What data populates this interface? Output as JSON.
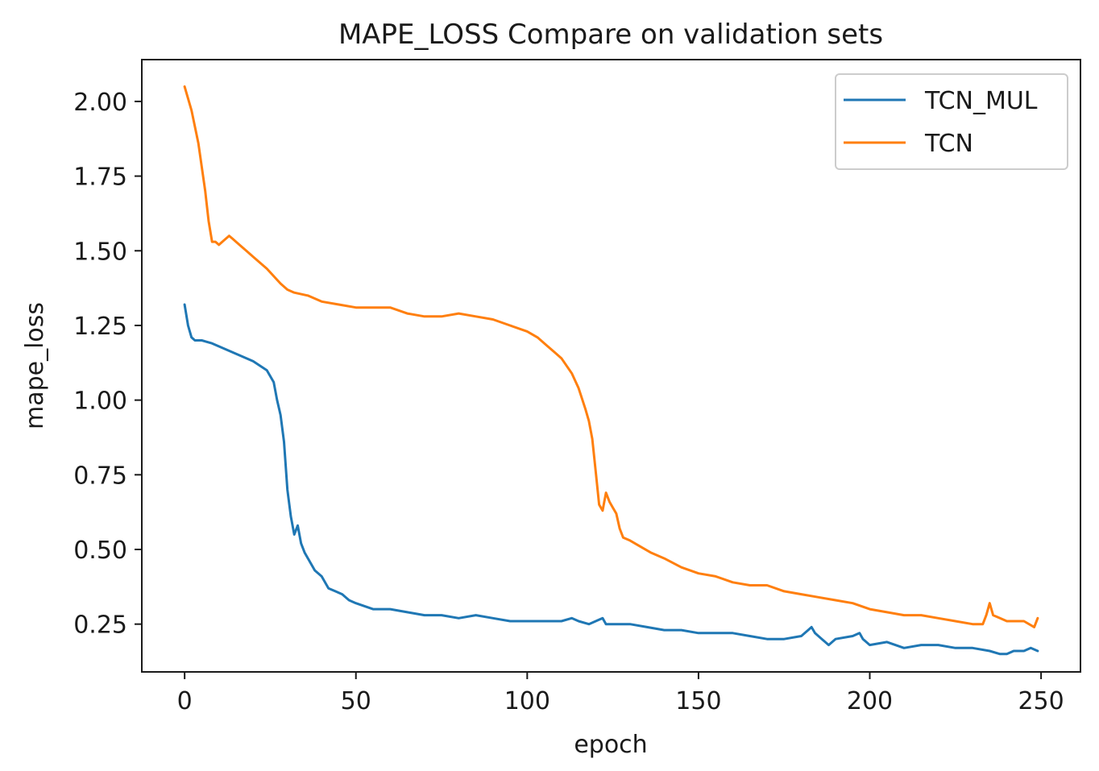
{
  "chart_data": {
    "type": "line",
    "title": "MAPE_LOSS Compare on validation sets",
    "xlabel": "epoch",
    "ylabel": "mape_loss",
    "xlim": [
      -12.5,
      261.5
    ],
    "ylim": [
      0.09,
      2.14
    ],
    "xticks": [
      0,
      50,
      100,
      150,
      200,
      250
    ],
    "xtick_labels": [
      "0",
      "50",
      "100",
      "150",
      "200",
      "250"
    ],
    "yticks": [
      0.25,
      0.5,
      0.75,
      1.0,
      1.25,
      1.5,
      1.75,
      2.0
    ],
    "ytick_labels": [
      "0.25",
      "0.50",
      "0.75",
      "1.00",
      "1.25",
      "1.50",
      "1.75",
      "2.00"
    ],
    "grid": false,
    "legend": "top-right",
    "series": [
      {
        "name": "TCN_MUL",
        "color": "#1f77b4",
        "x": [
          0,
          1,
          2,
          3,
          4,
          5,
          8,
          12,
          16,
          20,
          24,
          26,
          27,
          28,
          29,
          30,
          31,
          32,
          33,
          34,
          35,
          36,
          38,
          40,
          42,
          44,
          46,
          48,
          50,
          55,
          60,
          65,
          70,
          75,
          80,
          85,
          90,
          95,
          100,
          105,
          110,
          113,
          115,
          118,
          120,
          122,
          123,
          125,
          130,
          135,
          140,
          145,
          150,
          155,
          160,
          165,
          170,
          175,
          180,
          182,
          183,
          184,
          186,
          188,
          190,
          195,
          197,
          198,
          200,
          205,
          210,
          215,
          220,
          225,
          230,
          235,
          238,
          240,
          242,
          245,
          247,
          249
        ],
        "values": [
          1.32,
          1.25,
          1.21,
          1.2,
          1.2,
          1.2,
          1.19,
          1.17,
          1.15,
          1.13,
          1.1,
          1.06,
          1.0,
          0.95,
          0.86,
          0.7,
          0.61,
          0.55,
          0.58,
          0.52,
          0.49,
          0.47,
          0.43,
          0.41,
          0.37,
          0.36,
          0.35,
          0.33,
          0.32,
          0.3,
          0.3,
          0.29,
          0.28,
          0.28,
          0.27,
          0.28,
          0.27,
          0.26,
          0.26,
          0.26,
          0.26,
          0.27,
          0.26,
          0.25,
          0.26,
          0.27,
          0.25,
          0.25,
          0.25,
          0.24,
          0.23,
          0.23,
          0.22,
          0.22,
          0.22,
          0.21,
          0.2,
          0.2,
          0.21,
          0.23,
          0.24,
          0.22,
          0.2,
          0.18,
          0.2,
          0.21,
          0.22,
          0.2,
          0.18,
          0.19,
          0.17,
          0.18,
          0.18,
          0.17,
          0.17,
          0.16,
          0.15,
          0.15,
          0.16,
          0.16,
          0.17,
          0.16
        ]
      },
      {
        "name": "TCN",
        "color": "#ff7f0e",
        "x": [
          0,
          2,
          4,
          6,
          7,
          8,
          9,
          10,
          11,
          12,
          13,
          14,
          16,
          18,
          20,
          24,
          28,
          30,
          32,
          36,
          40,
          45,
          50,
          55,
          60,
          65,
          70,
          75,
          80,
          85,
          90,
          95,
          100,
          103,
          105,
          108,
          110,
          113,
          115,
          117,
          118,
          119,
          120,
          121,
          122,
          123,
          124,
          125,
          126,
          127,
          128,
          130,
          133,
          136,
          140,
          145,
          150,
          155,
          160,
          165,
          170,
          175,
          180,
          185,
          190,
          195,
          200,
          205,
          210,
          215,
          220,
          225,
          230,
          233,
          234,
          235,
          236,
          238,
          240,
          245,
          248,
          249
        ],
        "values": [
          2.05,
          1.97,
          1.86,
          1.7,
          1.6,
          1.53,
          1.53,
          1.52,
          1.53,
          1.54,
          1.55,
          1.54,
          1.52,
          1.5,
          1.48,
          1.44,
          1.39,
          1.37,
          1.36,
          1.35,
          1.33,
          1.32,
          1.31,
          1.31,
          1.31,
          1.29,
          1.28,
          1.28,
          1.29,
          1.28,
          1.27,
          1.25,
          1.23,
          1.21,
          1.19,
          1.16,
          1.14,
          1.09,
          1.04,
          0.97,
          0.93,
          0.87,
          0.76,
          0.65,
          0.63,
          0.69,
          0.66,
          0.64,
          0.62,
          0.57,
          0.54,
          0.53,
          0.51,
          0.49,
          0.47,
          0.44,
          0.42,
          0.41,
          0.39,
          0.38,
          0.38,
          0.36,
          0.35,
          0.34,
          0.33,
          0.32,
          0.3,
          0.29,
          0.28,
          0.28,
          0.27,
          0.26,
          0.25,
          0.25,
          0.28,
          0.32,
          0.28,
          0.27,
          0.26,
          0.26,
          0.24,
          0.27
        ]
      }
    ]
  }
}
